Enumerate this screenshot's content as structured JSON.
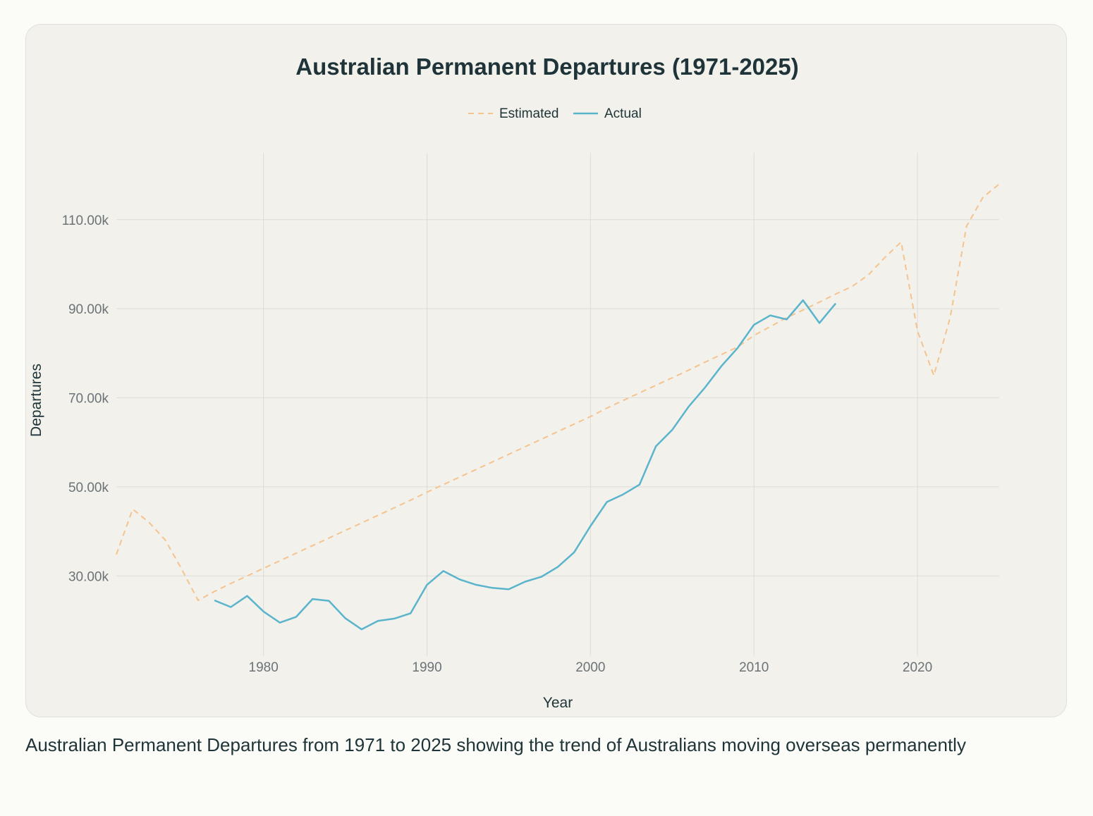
{
  "caption": "Australian Permanent Departures from 1971 to 2025 showing the trend of Australians moving overseas permanently",
  "colors": {
    "estimated": "#f5c38e",
    "actual": "#5ab4cc",
    "grid": "#dedcd6",
    "text": "#1f3438",
    "tick": "#6b7377"
  },
  "chart_data": {
    "type": "line",
    "title": "Australian Permanent Departures (1971-2025)",
    "xlabel": "Year",
    "ylabel": "Departures",
    "xlim": [
      1971,
      2025
    ],
    "ylim": [
      12000,
      125000
    ],
    "x_ticks": [
      1980,
      1990,
      2000,
      2010,
      2020
    ],
    "y_ticks": [
      30000,
      50000,
      70000,
      90000,
      110000
    ],
    "y_tick_labels": [
      "30.00k",
      "50.00k",
      "70.00k",
      "90.00k",
      "110.00k"
    ],
    "grid": true,
    "legend": "top-center",
    "series": [
      {
        "name": "Estimated",
        "style": "dashed",
        "x": [
          1971,
          1972,
          1973,
          1974,
          1975,
          1976,
          1977,
          1978,
          1979,
          1980,
          1981,
          1982,
          1983,
          1984,
          1985,
          1986,
          1987,
          1988,
          1989,
          1990,
          1991,
          1992,
          1993,
          1994,
          1995,
          1996,
          1997,
          1998,
          1999,
          2000,
          2001,
          2002,
          2003,
          2004,
          2005,
          2006,
          2007,
          2008,
          2009,
          2010,
          2011,
          2012,
          2013,
          2014,
          2015,
          2016,
          2017,
          2018,
          2019,
          2020,
          2021,
          2022,
          2023,
          2024,
          2025
        ],
        "values": [
          34800,
          45000,
          42000,
          38000,
          31500,
          24500,
          26500,
          28300,
          30000,
          31700,
          33400,
          35100,
          36800,
          38500,
          40200,
          41900,
          43600,
          45300,
          47000,
          48800,
          50500,
          52200,
          53900,
          55600,
          57300,
          59000,
          60700,
          62400,
          64100,
          65800,
          67700,
          69400,
          71100,
          72800,
          74500,
          76200,
          78000,
          79700,
          81400,
          84000,
          86000,
          88000,
          89700,
          91500,
          93300,
          95000,
          97600,
          101500,
          105000,
          85000,
          75000,
          88000,
          108500,
          115000,
          118000
        ]
      },
      {
        "name": "Actual",
        "style": "solid",
        "x": [
          1977,
          1978,
          1979,
          1980,
          1981,
          1982,
          1983,
          1984,
          1985,
          1986,
          1987,
          1988,
          1989,
          1990,
          1991,
          1992,
          1993,
          1994,
          1995,
          1996,
          1997,
          1998,
          1999,
          2000,
          2001,
          2002,
          2003,
          2004,
          2005,
          2006,
          2007,
          2008,
          2009,
          2010,
          2011,
          2012,
          2013,
          2014,
          2015
        ],
        "values": [
          24500,
          23000,
          25500,
          22000,
          19500,
          20800,
          24800,
          24400,
          20500,
          18000,
          19900,
          20400,
          21600,
          28000,
          31100,
          29200,
          28000,
          27300,
          27000,
          28700,
          29800,
          32000,
          35300,
          41200,
          46600,
          48300,
          50500,
          59100,
          62800,
          68000,
          72300,
          77100,
          81200,
          86400,
          88500,
          87600,
          91900,
          86800,
          91200
        ]
      }
    ]
  }
}
